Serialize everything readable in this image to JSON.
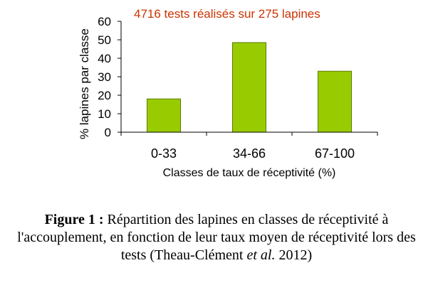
{
  "chart_data": {
    "type": "bar",
    "annotation": "4716 tests réalisés sur 275 lapines",
    "xlabel": "Classes de taux de réceptivité (%)",
    "ylabel": "%  lapines par classe",
    "categories": [
      "0-33",
      "34-66",
      "67-100"
    ],
    "values": [
      18,
      48.5,
      33
    ],
    "ylim": [
      0,
      60
    ],
    "yticks": [
      0,
      10,
      20,
      30,
      40,
      50,
      60
    ],
    "grid": false,
    "colors": {
      "bar": "#99cc00",
      "bar_edge": "#5a7a00",
      "annotation": "#cc3300",
      "axis": "#000000"
    }
  },
  "caption": {
    "label": "Figure 1 :",
    "text_1": " Répartition des lapines en classes de réceptivité à l'accouplement, en fonction de leur taux moyen de réceptivité lors des tests (Theau-Clément ",
    "italic": "et al.",
    "text_2": " 2012)"
  }
}
